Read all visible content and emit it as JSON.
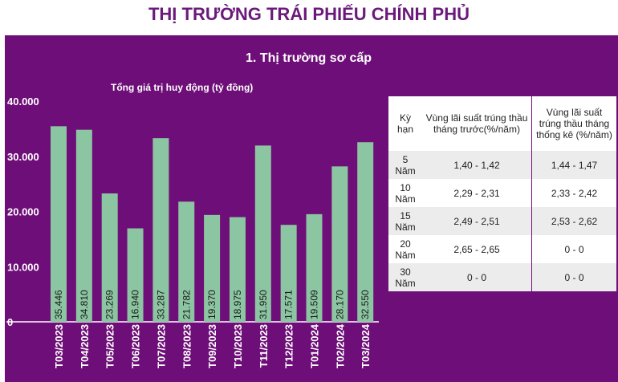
{
  "header": {
    "title": "THỊ TRƯỜNG TRÁI PHIẾU CHÍNH PHỦ"
  },
  "section": {
    "title": "1. Thị trường sơ cấp"
  },
  "chart_data": {
    "type": "bar",
    "title": "Tổng giá trị huy động (tỷ đồng)",
    "categories": [
      "T03/2023",
      "T04/2023",
      "T05/2023",
      "T06/2023",
      "T07/2023",
      "T08/2023",
      "T09/2023",
      "T10/2023",
      "T11/2023",
      "T12/2023",
      "T01/2024",
      "T02/2024",
      "T03/2024"
    ],
    "values": [
      35446,
      34810,
      23269,
      16940,
      33287,
      21782,
      19370,
      18975,
      31950,
      17571,
      19509,
      28170,
      32550
    ],
    "value_labels": [
      "35.446",
      "34.810",
      "23.269",
      "16.940",
      "33.287",
      "21.782",
      "19.370",
      "18.975",
      "31.950",
      "17.571",
      "19.509",
      "28.170",
      "32.550"
    ],
    "yticks": [
      0,
      10000,
      20000,
      30000,
      40000
    ],
    "ytick_labels": [
      "0",
      "10.000",
      "20.000",
      "30.000",
      "40.000"
    ],
    "ylim": [
      0,
      40000
    ],
    "grid": false,
    "bar_color": "#8cc5a1"
  },
  "rate_table": {
    "headers": [
      "Kỳ hạn",
      "Vùng lãi suất trúng thầu tháng trước(%/năm)",
      "Vùng lãi suất trúng thầu tháng thống kê (%/năm)"
    ],
    "rows": [
      {
        "term": "5 Năm",
        "prev": "1,40 - 1,42",
        "current": "1,44 - 1,47"
      },
      {
        "term": "10 Năm",
        "prev": "2,29 - 2,31",
        "current": "2,33 - 2,42"
      },
      {
        "term": "15 Năm",
        "prev": "2,49 - 2,51",
        "current": "2,53 - 2,62"
      },
      {
        "term": "20 Năm",
        "prev": "2,65 - 2,65",
        "current": "0 - 0"
      },
      {
        "term": "30 Năm",
        "prev": "0 - 0",
        "current": "0 - 0"
      }
    ]
  },
  "colors": {
    "panel_bg": "#6e0e78",
    "title_color": "#6b1a7b",
    "bar": "#8cc5a1"
  }
}
